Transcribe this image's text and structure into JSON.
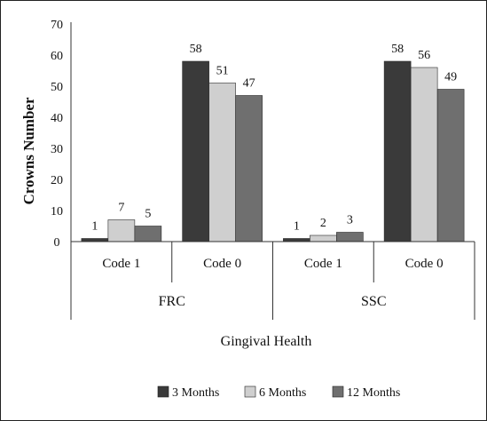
{
  "chart_data": {
    "type": "bar",
    "title": "",
    "xlabel": "Gingival Health",
    "ylabel": "Crowns Number",
    "ylim": [
      0,
      70
    ],
    "yticks": [
      0,
      10,
      20,
      30,
      40,
      50,
      60,
      70
    ],
    "groups": [
      {
        "name": "FRC",
        "categories": [
          "Code 1",
          "Code 0"
        ]
      },
      {
        "name": "SSC",
        "categories": [
          "Code 1",
          "Code 0"
        ]
      }
    ],
    "categories": [
      "Code 1",
      "Code 0",
      "Code 1",
      "Code 0"
    ],
    "series": [
      {
        "name": "3 Months",
        "color": "#3a3a3a",
        "values": [
          1,
          58,
          1,
          58
        ]
      },
      {
        "name": "6 Months",
        "color": "#cfcfcf",
        "values": [
          7,
          51,
          2,
          56
        ]
      },
      {
        "name": "12 Months",
        "color": "#6f6f6f",
        "values": [
          5,
          47,
          3,
          49
        ]
      }
    ],
    "legend": "bottom",
    "grid": false
  }
}
